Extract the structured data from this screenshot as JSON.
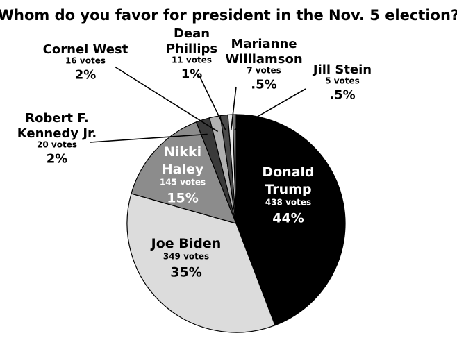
{
  "chart_data": {
    "type": "pie",
    "title": "Whom do you favor for president in the Nov. 5 election?",
    "slices": [
      {
        "name_lines": [
          "Donald",
          "Trump"
        ],
        "votes_label": "438 votes",
        "percent_label": "44%",
        "value": 438,
        "color": "#000000",
        "text_color": "#ffffff",
        "label_mode": "inside"
      },
      {
        "name_lines": [
          "Joe Biden"
        ],
        "votes_label": "349 votes",
        "percent_label": "35%",
        "value": 349,
        "color": "#dcdcdc",
        "text_color": "#000000",
        "label_mode": "inside"
      },
      {
        "name_lines": [
          "Nikki",
          "Haley"
        ],
        "votes_label": "145 votes",
        "percent_label": "15%",
        "value": 145,
        "color": "#8c8c8c",
        "text_color": "#ffffff",
        "label_mode": "inside"
      },
      {
        "name_lines": [
          "Robert F.",
          "Kennedy Jr."
        ],
        "votes_label": "20 votes",
        "percent_label": "2%",
        "value": 20,
        "color": "#3a3a3a",
        "text_color": "#000000",
        "label_mode": "outside"
      },
      {
        "name_lines": [
          "Cornel West"
        ],
        "votes_label": "16 votes",
        "percent_label": "2%",
        "value": 16,
        "color": "#b0b0b0",
        "text_color": "#000000",
        "label_mode": "outside"
      },
      {
        "name_lines": [
          "Dean",
          "Phillips"
        ],
        "votes_label": "11 votes",
        "percent_label": "1%",
        "value": 11,
        "color": "#4a4a4a",
        "text_color": "#000000",
        "label_mode": "outside"
      },
      {
        "name_lines": [
          "Marianne",
          "Williamson"
        ],
        "votes_label": "7 votes",
        "percent_label": ".5%",
        "value": 7,
        "color": "#e6e6e6",
        "text_color": "#000000",
        "label_mode": "outside"
      },
      {
        "name_lines": [
          "Jill Stein"
        ],
        "votes_label": "5 votes",
        "percent_label": ".5%",
        "value": 5,
        "color": "#7a7a7a",
        "text_color": "#000000",
        "label_mode": "outside"
      }
    ],
    "legend": "none"
  }
}
